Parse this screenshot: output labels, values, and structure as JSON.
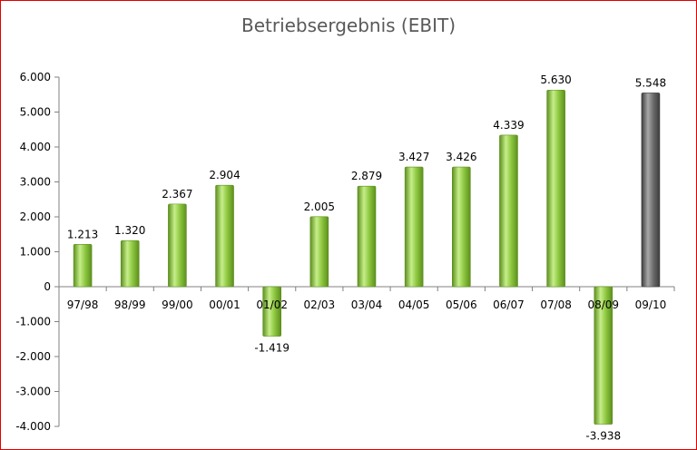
{
  "colors": {
    "bar_green": "#8cc63e",
    "bar_green_light": "#c6ee8a",
    "bar_green_dark": "#5d8f1e",
    "bar_highlight": "#6b6b6b",
    "bar_highlight_light": "#a8a8a8",
    "bar_highlight_dark": "#3c3c3c",
    "frame_border": "#e00000"
  },
  "chart_data": {
    "type": "bar",
    "title": "Betriebsergebnis (EBIT)",
    "categories": [
      "97/98",
      "98/99",
      "99/00",
      "00/01",
      "01/02",
      "02/03",
      "03/04",
      "04/05",
      "05/06",
      "06/07",
      "07/08",
      "08/09",
      "09/10"
    ],
    "values": [
      1213,
      1320,
      2367,
      2904,
      -1419,
      2005,
      2879,
      3427,
      3426,
      4339,
      5630,
      -3938,
      5548
    ],
    "data_labels": [
      "1.213",
      "1.320",
      "2.367",
      "2.904",
      "-1.419",
      "2.005",
      "2.879",
      "3.427",
      "3.426",
      "4.339",
      "5.630",
      "-3.938",
      "5.548"
    ],
    "highlight_index": 12,
    "ylim": [
      -4000,
      6000
    ],
    "y_ticks": [
      -4000,
      -3000,
      -2000,
      -1000,
      0,
      1000,
      2000,
      3000,
      4000,
      5000,
      6000
    ],
    "y_tick_labels": [
      "-4.000",
      "-3.000",
      "-2.000",
      "-1.000",
      "0",
      "1.000",
      "2.000",
      "3.000",
      "4.000",
      "5.000",
      "6.000"
    ],
    "xlabel": "",
    "ylabel": "",
    "grid": false,
    "legend": "none"
  }
}
